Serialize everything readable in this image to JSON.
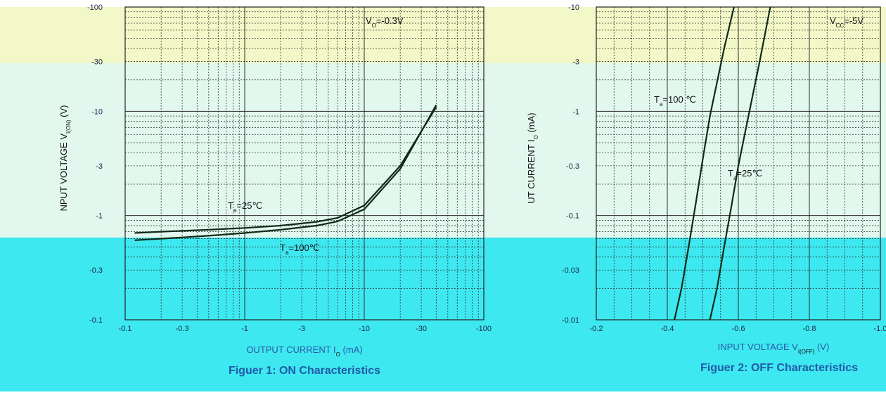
{
  "colors": {
    "band_top": "#f3f8c8",
    "band_mid": "#e2f8ee",
    "band_bottom": "#3ee8f0",
    "axis_label": "#2a5aa8",
    "title": "#1f5aa8",
    "curve": "#0f2a18"
  },
  "chart_data": [
    {
      "type": "line",
      "title": "Figuer 1:  ON Characteristics",
      "xlabel": "OUTPUT CURRENT    I",
      "xlabel_sub": "O",
      "xlabel_unit": "(mA)",
      "ylabel": "NPUT VOLTAGE    V",
      "ylabel_sub": "I(ON)",
      "ylabel_unit": "(V)",
      "xscale": "log",
      "yscale": "log",
      "xlim": [
        -0.1,
        -100
      ],
      "ylim": [
        -0.1,
        -100
      ],
      "x_ticks": [
        "-0.1",
        "-0.3",
        "-1",
        "-3",
        "-10",
        "-30",
        "-100"
      ],
      "y_ticks": [
        "-100",
        "-30",
        "-10",
        "-3",
        "-1",
        "-0.3",
        "-0.1"
      ],
      "condition": "V",
      "condition_sub": "O",
      "condition_value": "=-0.3V",
      "series": [
        {
          "name": "T",
          "name_sub": "a",
          "name_value": "=25℃",
          "x": [
            -0.12,
            -0.2,
            -0.5,
            -1,
            -2,
            -4,
            -6,
            -10,
            -20,
            -40
          ],
          "y": [
            -0.68,
            -0.7,
            -0.73,
            -0.76,
            -0.8,
            -0.87,
            -0.95,
            -1.25,
            -3,
            -11
          ]
        },
        {
          "name": "T",
          "name_sub": "a",
          "name_value": "=100℃",
          "x": [
            -0.12,
            -0.2,
            -0.5,
            -1,
            -2,
            -4,
            -6,
            -10,
            -20,
            -40
          ],
          "y": [
            -0.58,
            -0.6,
            -0.64,
            -0.68,
            -0.73,
            -0.8,
            -0.88,
            -1.15,
            -2.8,
            -11.5
          ]
        }
      ]
    },
    {
      "type": "line",
      "title": "Figuer 2:  OFF Characteristics",
      "xlabel": "INPUT VOLTAGE    V",
      "xlabel_sub": "I(OFF)",
      "xlabel_unit": "(V)",
      "ylabel": "UT CURRENT    I",
      "ylabel_sub": "O",
      "ylabel_unit": "(mA)",
      "xscale": "linear",
      "yscale": "log",
      "xlim": [
        -0.2,
        -1.0
      ],
      "ylim": [
        -0.01,
        -10
      ],
      "x_ticks": [
        "-0.2",
        "-0.4",
        "-0.6",
        "-0.8",
        "-1.0"
      ],
      "y_ticks": [
        "-10",
        "-3",
        "-1",
        "-0.3",
        "-0.1",
        "-0.03",
        "-0.01"
      ],
      "condition": "V",
      "condition_sub": "CC",
      "condition_value": "=-5V",
      "series": [
        {
          "name": "T",
          "name_sub": "a",
          "name_value": "=100 ℃",
          "x": [
            -0.42,
            -0.44,
            -0.46,
            -0.48,
            -0.5,
            -0.52,
            -0.56,
            -0.6
          ],
          "y": [
            -0.01,
            -0.02,
            -0.05,
            -0.13,
            -0.35,
            -0.9,
            -4,
            -15
          ]
        },
        {
          "name": "T",
          "name_sub": "a",
          "name_value": "=25℃",
          "x": [
            -0.52,
            -0.54,
            -0.56,
            -0.58,
            -0.6,
            -0.62,
            -0.66,
            -0.7
          ],
          "y": [
            -0.01,
            -0.02,
            -0.05,
            -0.12,
            -0.3,
            -0.65,
            -3,
            -15
          ]
        }
      ]
    }
  ]
}
